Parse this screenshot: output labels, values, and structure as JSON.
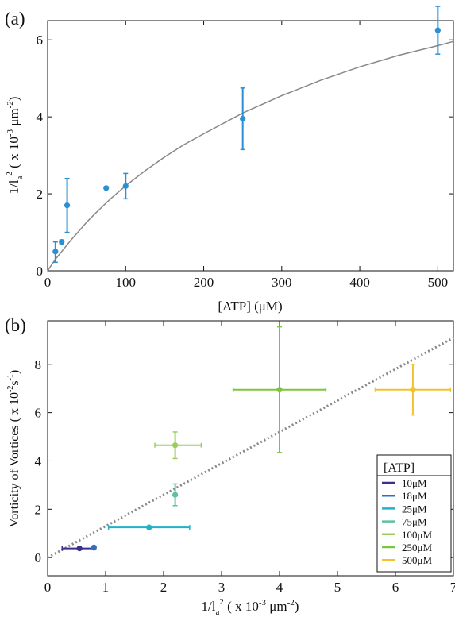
{
  "chart_data": [
    {
      "panel_label": "(a)",
      "type": "scatter",
      "xlabel": "[ATP] (μM)",
      "ylabel_parts": {
        "prefix": "1/",
        "l": "l",
        "sub": "a",
        "sup": "2",
        "unit_open": " ( x 10",
        "unit_exp": "-3",
        "unit_mid": " μm",
        "unit_exp2": "-2",
        "unit_close": ")"
      },
      "xlim": [
        0,
        520
      ],
      "ylim": [
        0,
        6.5
      ],
      "xticks": [
        0,
        100,
        200,
        300,
        400,
        500
      ],
      "yticks": [
        0,
        2,
        4,
        6
      ],
      "grid": false,
      "points_color": "#2b8fd3",
      "fit_color": "#888888",
      "series": [
        {
          "x": [
            10,
            18,
            25,
            75,
            100,
            250,
            500
          ],
          "y": [
            0.5,
            0.75,
            1.7,
            2.15,
            2.2,
            3.95,
            6.25
          ],
          "yerr_low": [
            0.28,
            0.05,
            0.7,
            0.02,
            0.33,
            0.8,
            0.62
          ],
          "yerr_high": [
            0.25,
            0.05,
            0.7,
            0.02,
            0.33,
            0.8,
            0.62
          ]
        }
      ],
      "fit_curve": {
        "x": [
          0,
          10,
          20,
          30,
          40,
          50,
          60,
          80,
          100,
          125,
          150,
          175,
          200,
          250,
          300,
          350,
          400,
          450,
          500,
          520
        ],
        "y": [
          0,
          0.3,
          0.55,
          0.8,
          1.03,
          1.26,
          1.47,
          1.86,
          2.21,
          2.6,
          2.96,
          3.28,
          3.56,
          4.1,
          4.55,
          4.95,
          5.3,
          5.6,
          5.85,
          5.96
        ]
      }
    },
    {
      "panel_label": "(b)",
      "type": "scatter",
      "xlabel_parts": {
        "prefix": "1/",
        "l": "l",
        "sub": "a",
        "sup": "2",
        "unit_open": " ( x 10",
        "unit_exp": "-3",
        "unit_mid": " μm",
        "unit_exp2": "-2",
        "unit_close": ")"
      },
      "ylabel_parts": {
        "text": "Vorticity of Vortices ( x 10",
        "exp": "-2",
        "mid": "s",
        "exp2": "-1",
        "close": ")"
      },
      "xlim": [
        0,
        7
      ],
      "ylim": [
        -0.75,
        9.8
      ],
      "xticks": [
        0,
        1,
        2,
        3,
        4,
        5,
        6,
        7
      ],
      "yticks": [
        0,
        2,
        4,
        6,
        8
      ],
      "grid": false,
      "legend": {
        "title": "[ATP]",
        "placement": "bottom-right",
        "entries": [
          "10μM",
          "18μM",
          "25μM",
          "75μM",
          "100μM",
          "250μM",
          "500μM"
        ]
      },
      "series": [
        {
          "name": "10μM",
          "color": "#3a2f8a",
          "x": 0.55,
          "y": 0.38,
          "xerr": [
            0.3,
            0.25
          ],
          "yerr": [
            0.0,
            0.0
          ]
        },
        {
          "name": "18μM",
          "color": "#2e6fc2",
          "x": 0.8,
          "y": 0.42,
          "xerr": [
            0.0,
            0.0
          ],
          "yerr": [
            0.05,
            0.05
          ]
        },
        {
          "name": "25μM",
          "color": "#1fb3c8",
          "x": 1.75,
          "y": 1.25,
          "xerr": [
            0.7,
            0.7
          ],
          "yerr": [
            0.0,
            0.0
          ]
        },
        {
          "name": "75μM",
          "color": "#5ec1a1",
          "x": 2.2,
          "y": 2.6,
          "xerr": [
            0.0,
            0.0
          ],
          "yerr": [
            0.45,
            0.45
          ]
        },
        {
          "name": "100μM",
          "color": "#9ccd5a",
          "x": 2.2,
          "y": 4.65,
          "xerr": [
            0.35,
            0.45
          ],
          "yerr": [
            0.55,
            0.55
          ]
        },
        {
          "name": "250μM",
          "color": "#7cc63c",
          "x": 4.0,
          "y": 6.95,
          "xerr": [
            0.8,
            0.8
          ],
          "yerr": [
            2.6,
            2.6
          ]
        },
        {
          "name": "500μM",
          "color": "#f2c232",
          "x": 6.3,
          "y": 6.95,
          "xerr": [
            0.65,
            0.65
          ],
          "yerr": [
            1.05,
            1.05
          ]
        }
      ],
      "fit_line": {
        "x": [
          0,
          7
        ],
        "y": [
          0,
          9.1
        ],
        "color": "#888888",
        "style": "dotted"
      }
    }
  ]
}
